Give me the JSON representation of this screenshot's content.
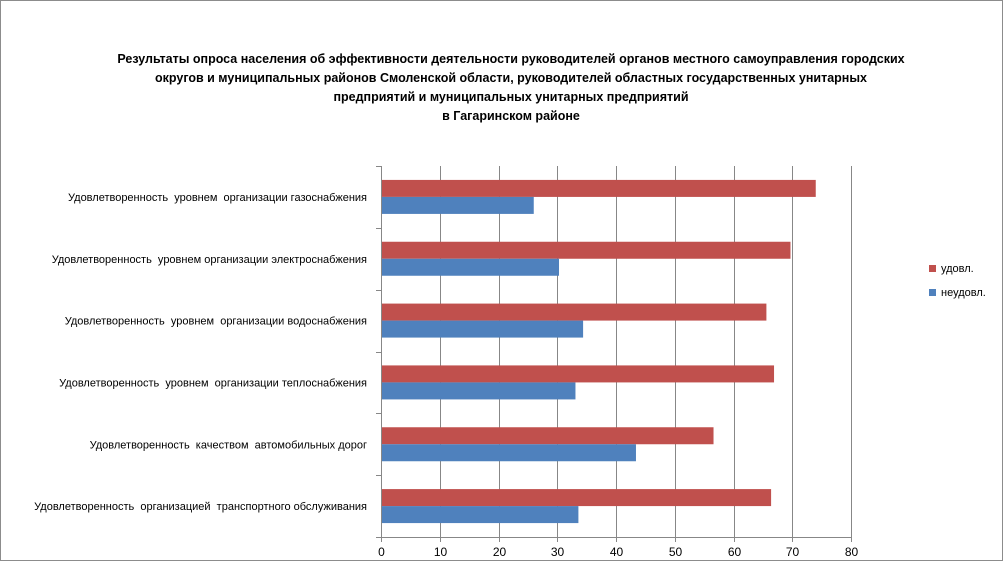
{
  "chart_data": {
    "type": "bar",
    "orientation": "horizontal",
    "title_lines": [
      "Результаты опроса населения об эффективности деятельности руководителей органов местного самоуправления городских",
      "округов и муниципальных районов Смоленской области, руководителей областных государственных унитарных",
      "предприятий и муниципальных унитарных предприятий",
      "в Гагаринском районе"
    ],
    "categories": [
      "Удовлетворенность  уровнем  организации газоснабжения",
      "Удовлетворенность  уровнем организации электроснабжения",
      "Удовлетворенность  уровнем  организации водоснабжения",
      "Удовлетворенность  уровнем  организации теплоснабжения",
      "Удовлетворенность  качеством  автомобильных дорог",
      "Удовлетворенность  организацией  транспортного обслуживания"
    ],
    "series": [
      {
        "name": "удовл.",
        "color": "#c0504d",
        "values": [
          74,
          69.7,
          65.6,
          66.9,
          56.6,
          66.4
        ]
      },
      {
        "name": "неудовл.",
        "color": "#4f81bd",
        "values": [
          26,
          30.3,
          34.4,
          33.1,
          43.4,
          33.6
        ]
      }
    ],
    "xlim": [
      0,
      80
    ],
    "xticks": [
      0,
      10,
      20,
      30,
      40,
      50,
      60,
      70,
      80
    ],
    "xlabel": "",
    "ylabel": "",
    "grid": true,
    "legend_position": "right"
  }
}
